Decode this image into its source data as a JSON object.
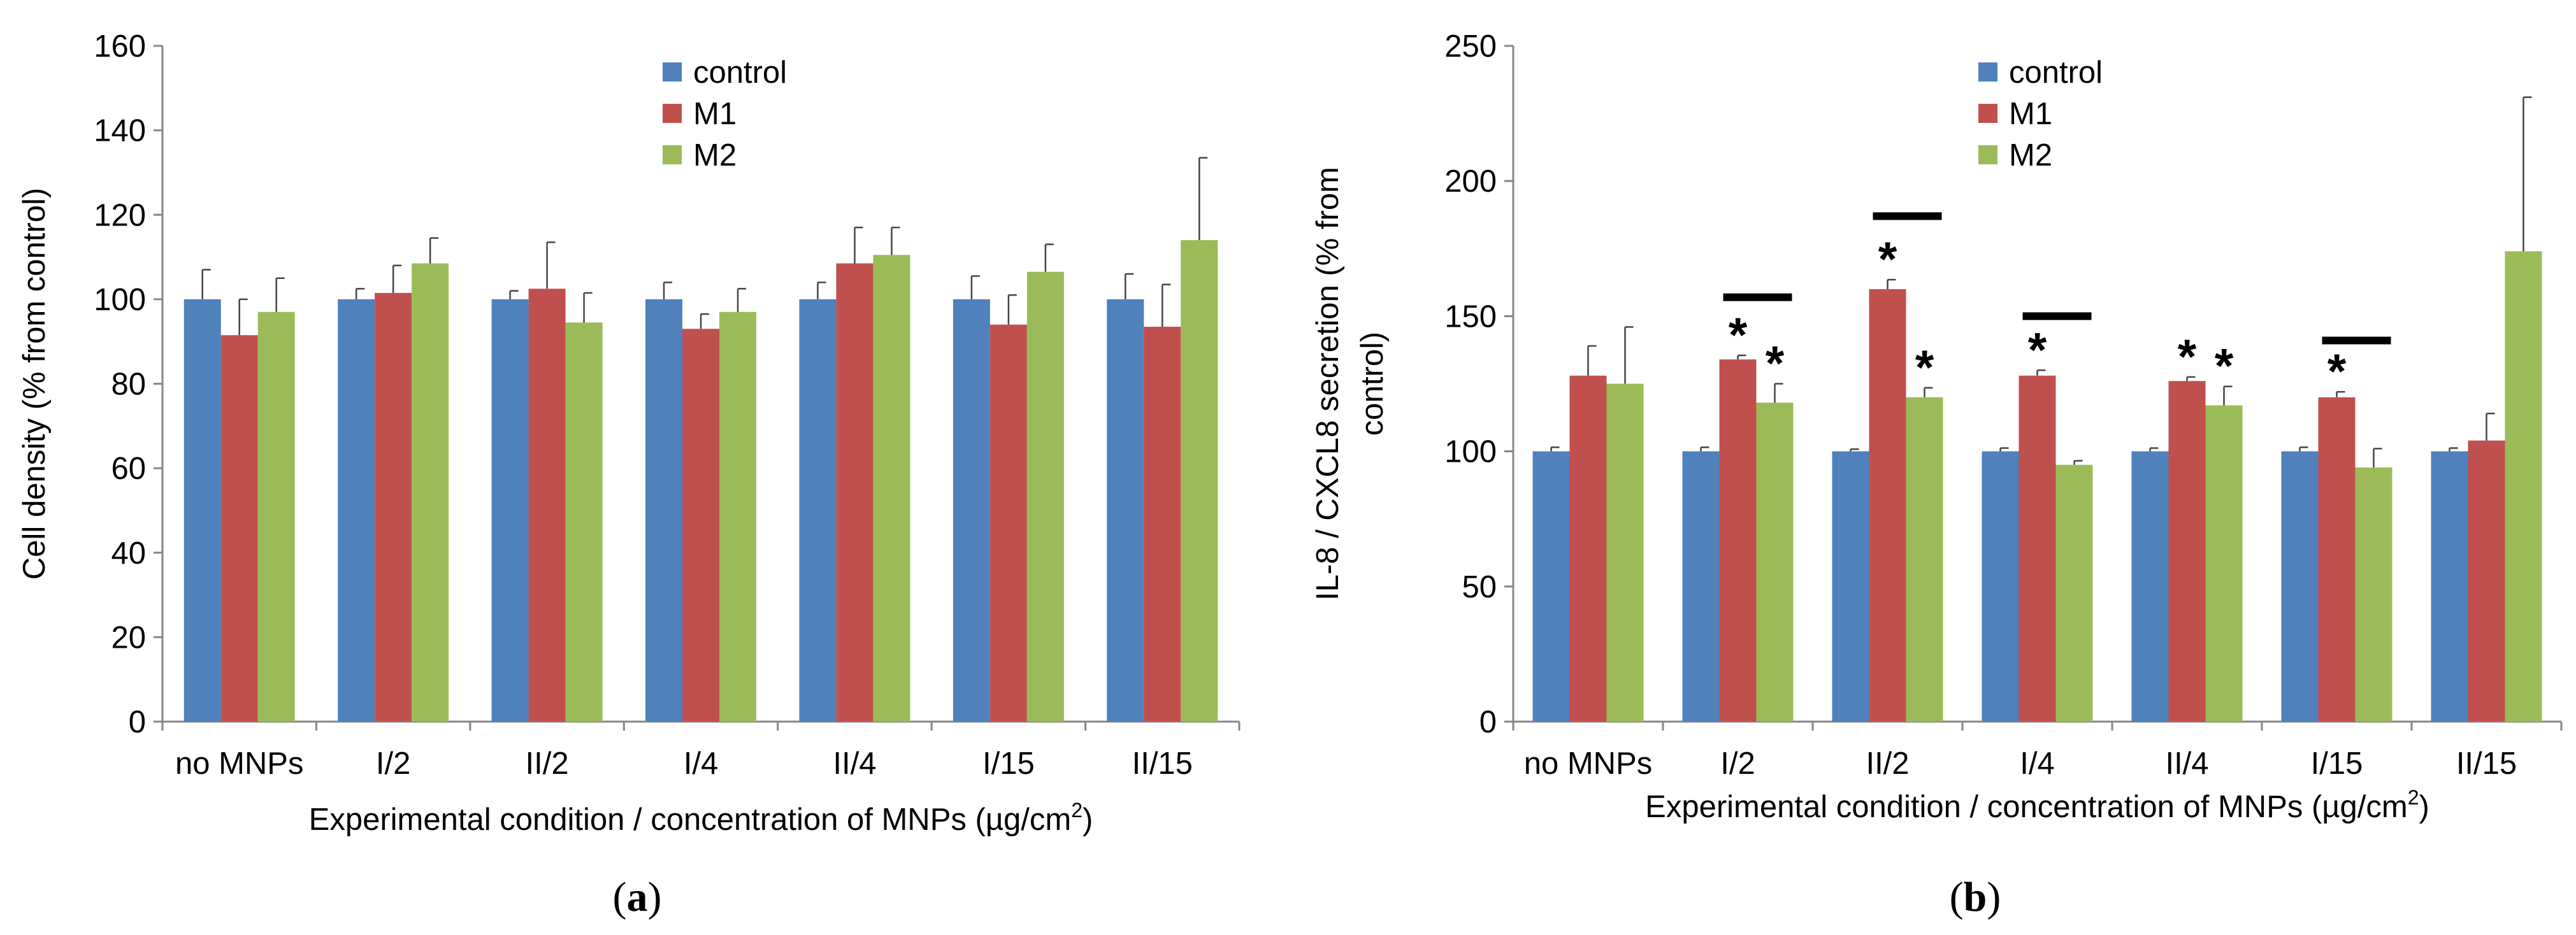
{
  "chart_data": [
    {
      "type": "bar",
      "panel_label_open": "(",
      "panel_label_letter": "a",
      "panel_label_close": ")",
      "title": "",
      "xlabel": "Experimental condition / concentration of MNPs (µg/cm",
      "xlabel_sup": "2",
      "xlabel_close": ")",
      "ylabel": "Cell density (% from control)",
      "ylabel_lines": [
        "Cell density (% from control)"
      ],
      "ylim": [
        0,
        160
      ],
      "yticks": [
        0,
        20,
        40,
        60,
        80,
        100,
        120,
        140,
        160
      ],
      "grid": false,
      "legend_position": "top-center",
      "categories": [
        "no MNPs",
        "I/2",
        "II/2",
        "I/4",
        "II/4",
        "I/15",
        "II/15"
      ],
      "series": [
        {
          "name": "control",
          "color": "#4F81BD",
          "values": [
            100,
            100,
            100,
            100,
            100,
            100,
            100
          ],
          "errors": [
            7,
            2.5,
            2,
            4,
            4,
            5.5,
            6
          ]
        },
        {
          "name": "M1",
          "color": "#C0504D",
          "values": [
            91.5,
            101.5,
            102.5,
            93,
            108.5,
            94,
            93.5
          ],
          "errors": [
            8.5,
            6.5,
            11,
            3.5,
            8.5,
            7,
            10
          ]
        },
        {
          "name": "M2",
          "color": "#9BBB59",
          "values": [
            97,
            108.5,
            94.5,
            97,
            110.5,
            106.5,
            114
          ],
          "errors": [
            8,
            6,
            7,
            5.5,
            6.5,
            6.5,
            19.5
          ]
        }
      ],
      "significance_bars": [],
      "asterisks": []
    },
    {
      "type": "bar",
      "panel_label_open": "(",
      "panel_label_letter": "b",
      "panel_label_close": ")",
      "title": "",
      "xlabel": "Experimental condition / concentration of MNPs (µg/cm",
      "xlabel_sup": "2",
      "xlabel_close": ")",
      "ylabel": "IL-8 / CXCL8 secretion (% from control)",
      "ylabel_lines": [
        "IL-8 / CXCL8 secretion (% from",
        "control)"
      ],
      "ylim": [
        0,
        250
      ],
      "yticks": [
        0,
        50,
        100,
        150,
        200,
        250
      ],
      "grid": false,
      "legend_position": "top-center",
      "categories": [
        "no MNPs",
        "I/2",
        "II/2",
        "I/4",
        "II/4",
        "I/15",
        "II/15"
      ],
      "series": [
        {
          "name": "control",
          "color": "#4F81BD",
          "values": [
            100,
            100,
            100,
            100,
            100,
            100,
            100
          ],
          "errors": [
            1.5,
            1.5,
            0.8,
            1.2,
            1.2,
            1.5,
            1.2
          ]
        },
        {
          "name": "M1",
          "color": "#C0504D",
          "values": [
            128,
            134,
            160,
            128,
            126,
            120,
            104
          ],
          "errors": [
            11,
            1.5,
            3.5,
            2,
            1.5,
            2,
            10
          ]
        },
        {
          "name": "M2",
          "color": "#9BBB59",
          "values": [
            125,
            118,
            120,
            95,
            117,
            94,
            174
          ],
          "errors": [
            21,
            7,
            3.5,
            1.5,
            7,
            7,
            57
          ]
        }
      ],
      "significance_bars": [
        {
          "category": 1,
          "y": 157
        },
        {
          "category": 2,
          "y": 187
        },
        {
          "category": 3,
          "y": 150
        },
        {
          "category": 5,
          "y": 141
        }
      ],
      "asterisks": [
        {
          "category": 1,
          "series": 1,
          "label": "*"
        },
        {
          "category": 1,
          "series": 2,
          "label": "*"
        },
        {
          "category": 2,
          "series": 1,
          "label": "*"
        },
        {
          "category": 2,
          "series": 2,
          "label": "*"
        },
        {
          "category": 3,
          "series": 1,
          "label": "*"
        },
        {
          "category": 4,
          "series": 1,
          "label": "*"
        },
        {
          "category": 4,
          "series": 2,
          "label": "*"
        },
        {
          "category": 5,
          "series": 1,
          "label": "*"
        }
      ]
    }
  ]
}
